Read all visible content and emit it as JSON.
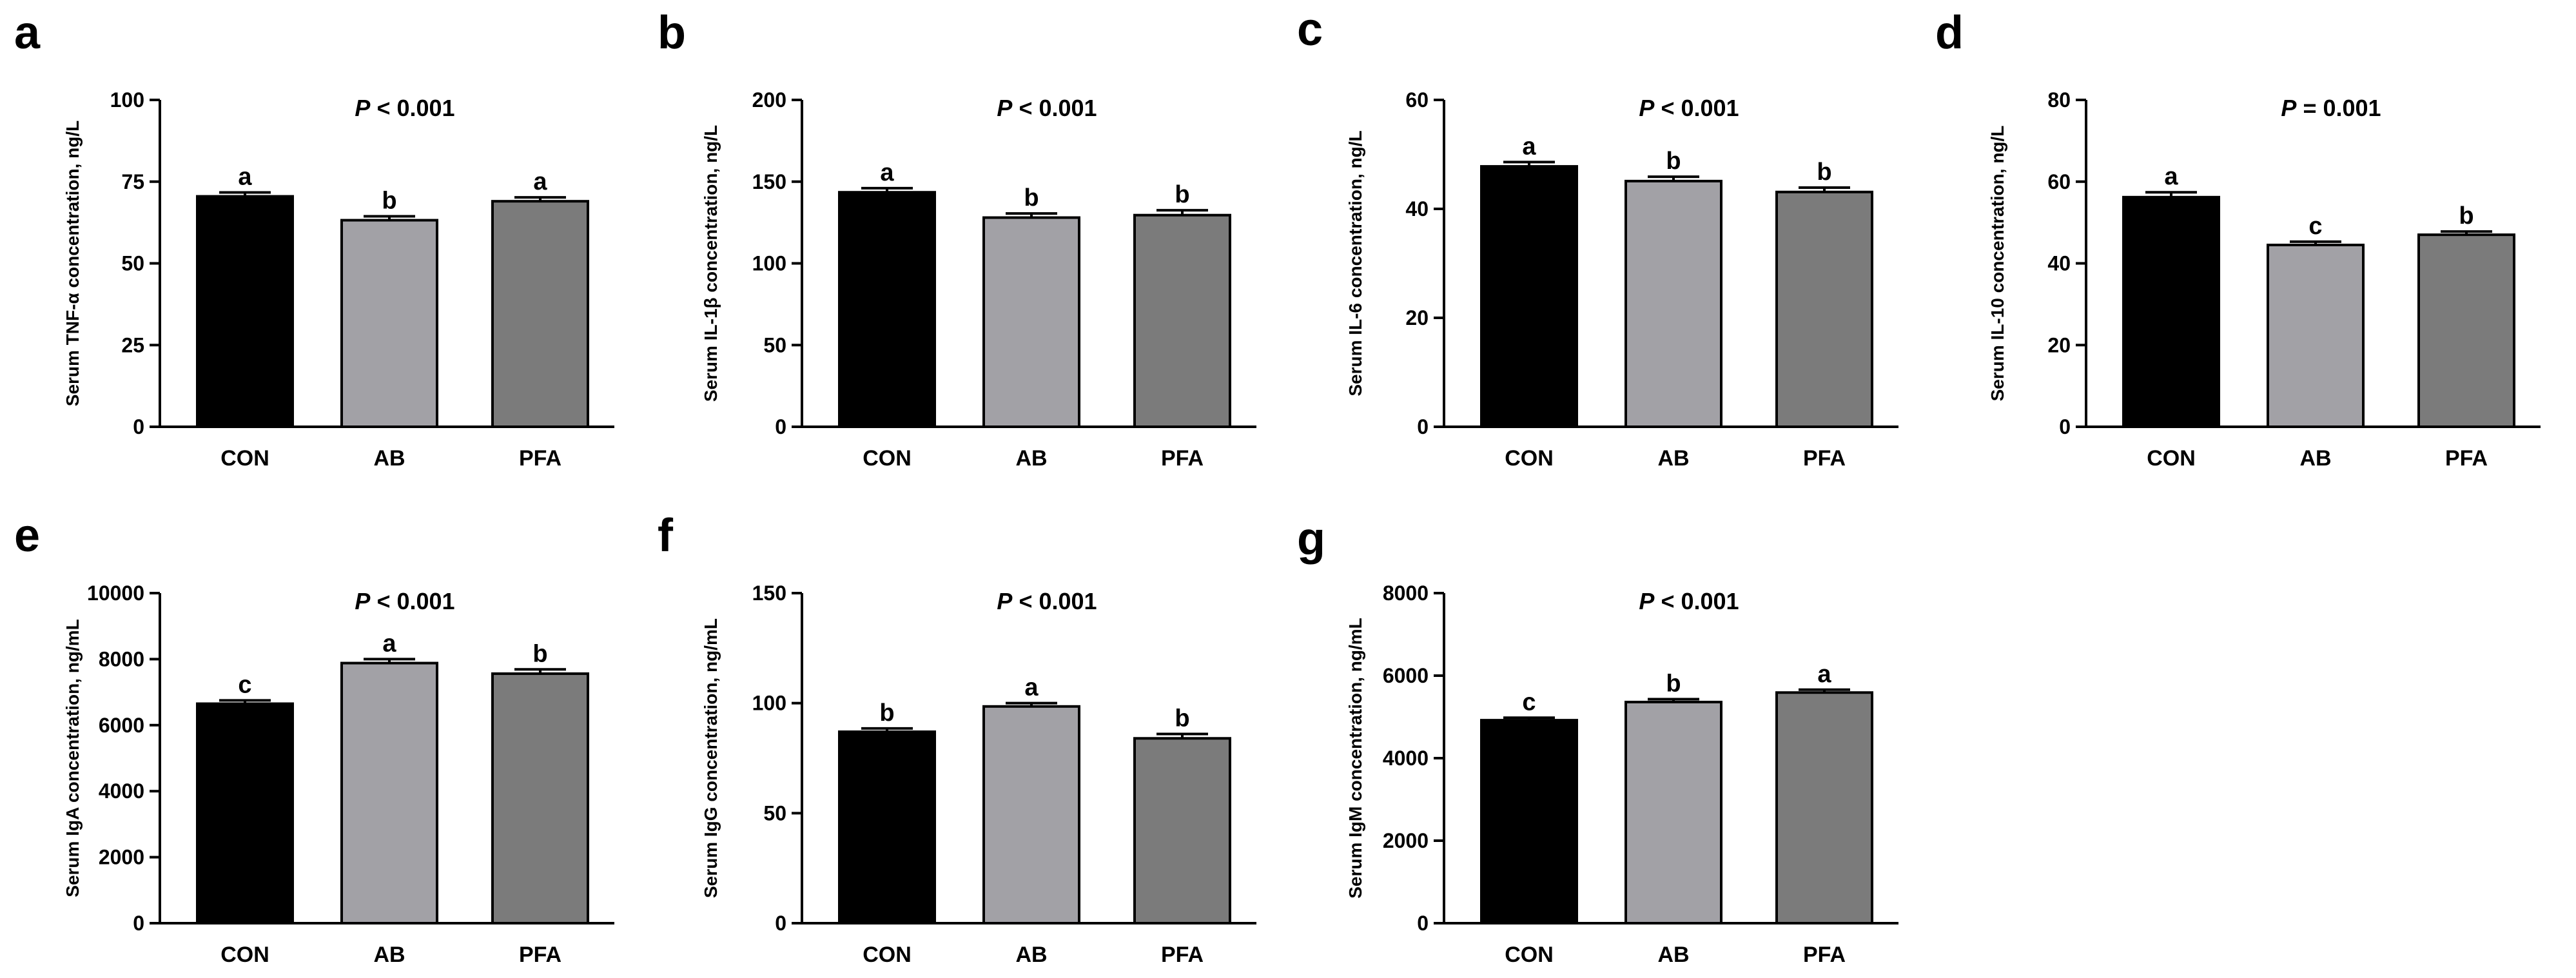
{
  "figure": {
    "categories": [
      "CON",
      "AB",
      "PFA"
    ],
    "bar_colors": [
      "#000000",
      "#a2a1a6",
      "#7b7b7b"
    ]
  },
  "chart_data": [
    {
      "panel": "a",
      "type": "bar",
      "ylabel": "Serum TNF-α concentration, ng/L",
      "p_prefix": "P",
      "p_suffix": " < 0.001",
      "categories": [
        "CON",
        "AB",
        "PFA"
      ],
      "values": [
        70.5,
        63.2,
        69.0
      ],
      "errors": [
        1.2,
        1.2,
        1.2
      ],
      "letters": [
        "a",
        "b",
        "a"
      ],
      "ylim": [
        0,
        100
      ],
      "yticks": [
        0,
        25,
        50,
        75,
        100
      ]
    },
    {
      "panel": "b",
      "type": "bar",
      "ylabel": "Serum IL-1β concentration, ng/L",
      "p_prefix": "P",
      "p_suffix": " < 0.001",
      "categories": [
        "CON",
        "AB",
        "PFA"
      ],
      "values": [
        143.5,
        128.0,
        129.5
      ],
      "errors": [
        2.5,
        2.5,
        3.0
      ],
      "letters": [
        "a",
        "b",
        "b"
      ],
      "ylim": [
        0,
        200
      ],
      "yticks": [
        0,
        50,
        100,
        150,
        200
      ]
    },
    {
      "panel": "c",
      "type": "bar",
      "ylabel": "Serum IL-6 concentration, ng/L",
      "p_prefix": "P",
      "p_suffix": " < 0.001",
      "categories": [
        "CON",
        "AB",
        "PFA"
      ],
      "values": [
        47.8,
        45.1,
        43.1
      ],
      "errors": [
        0.8,
        0.8,
        0.8
      ],
      "letters": [
        "a",
        "b",
        "b"
      ],
      "ylim": [
        0,
        60
      ],
      "yticks": [
        0,
        20,
        40,
        60
      ]
    },
    {
      "panel": "d",
      "type": "bar",
      "ylabel": "Serum IL-10 concentration, ng/L",
      "p_prefix": "P",
      "p_suffix": " = 0.001",
      "categories": [
        "CON",
        "AB",
        "PFA"
      ],
      "values": [
        56.2,
        44.5,
        47.0
      ],
      "errors": [
        1.2,
        0.8,
        0.8
      ],
      "letters": [
        "a",
        "c",
        "b"
      ],
      "ylim": [
        0,
        80
      ],
      "yticks": [
        0,
        20,
        40,
        60,
        80
      ]
    },
    {
      "panel": "e",
      "type": "bar",
      "ylabel": "Serum IgA concentration, ng/mL",
      "p_prefix": "P",
      "p_suffix": " < 0.001",
      "categories": [
        "CON",
        "AB",
        "PFA"
      ],
      "values": [
        6650,
        7880,
        7560
      ],
      "errors": [
        100,
        120,
        130
      ],
      "letters": [
        "c",
        "a",
        "b"
      ],
      "ylim": [
        0,
        10000
      ],
      "yticks": [
        0,
        2000,
        4000,
        6000,
        8000,
        10000
      ]
    },
    {
      "panel": "f",
      "type": "bar",
      "ylabel": "Serum IgG concentration, ng/mL",
      "p_prefix": "P",
      "p_suffix": " < 0.001",
      "categories": [
        "CON",
        "AB",
        "PFA"
      ],
      "values": [
        87.0,
        98.5,
        84.0
      ],
      "errors": [
        1.5,
        1.5,
        2.0
      ],
      "letters": [
        "b",
        "a",
        "b"
      ],
      "ylim": [
        0,
        150
      ],
      "yticks": [
        0,
        50,
        100,
        150
      ]
    },
    {
      "panel": "g",
      "type": "bar",
      "ylabel": "Serum IgM concentration, ng/mL",
      "p_prefix": "P",
      "p_suffix": " < 0.001",
      "categories": [
        "CON",
        "AB",
        "PFA"
      ],
      "values": [
        4920,
        5360,
        5590
      ],
      "errors": [
        60,
        70,
        70
      ],
      "letters": [
        "c",
        "b",
        "a"
      ],
      "ylim": [
        0,
        8000
      ],
      "yticks": [
        0,
        2000,
        4000,
        6000,
        8000
      ]
    }
  ]
}
